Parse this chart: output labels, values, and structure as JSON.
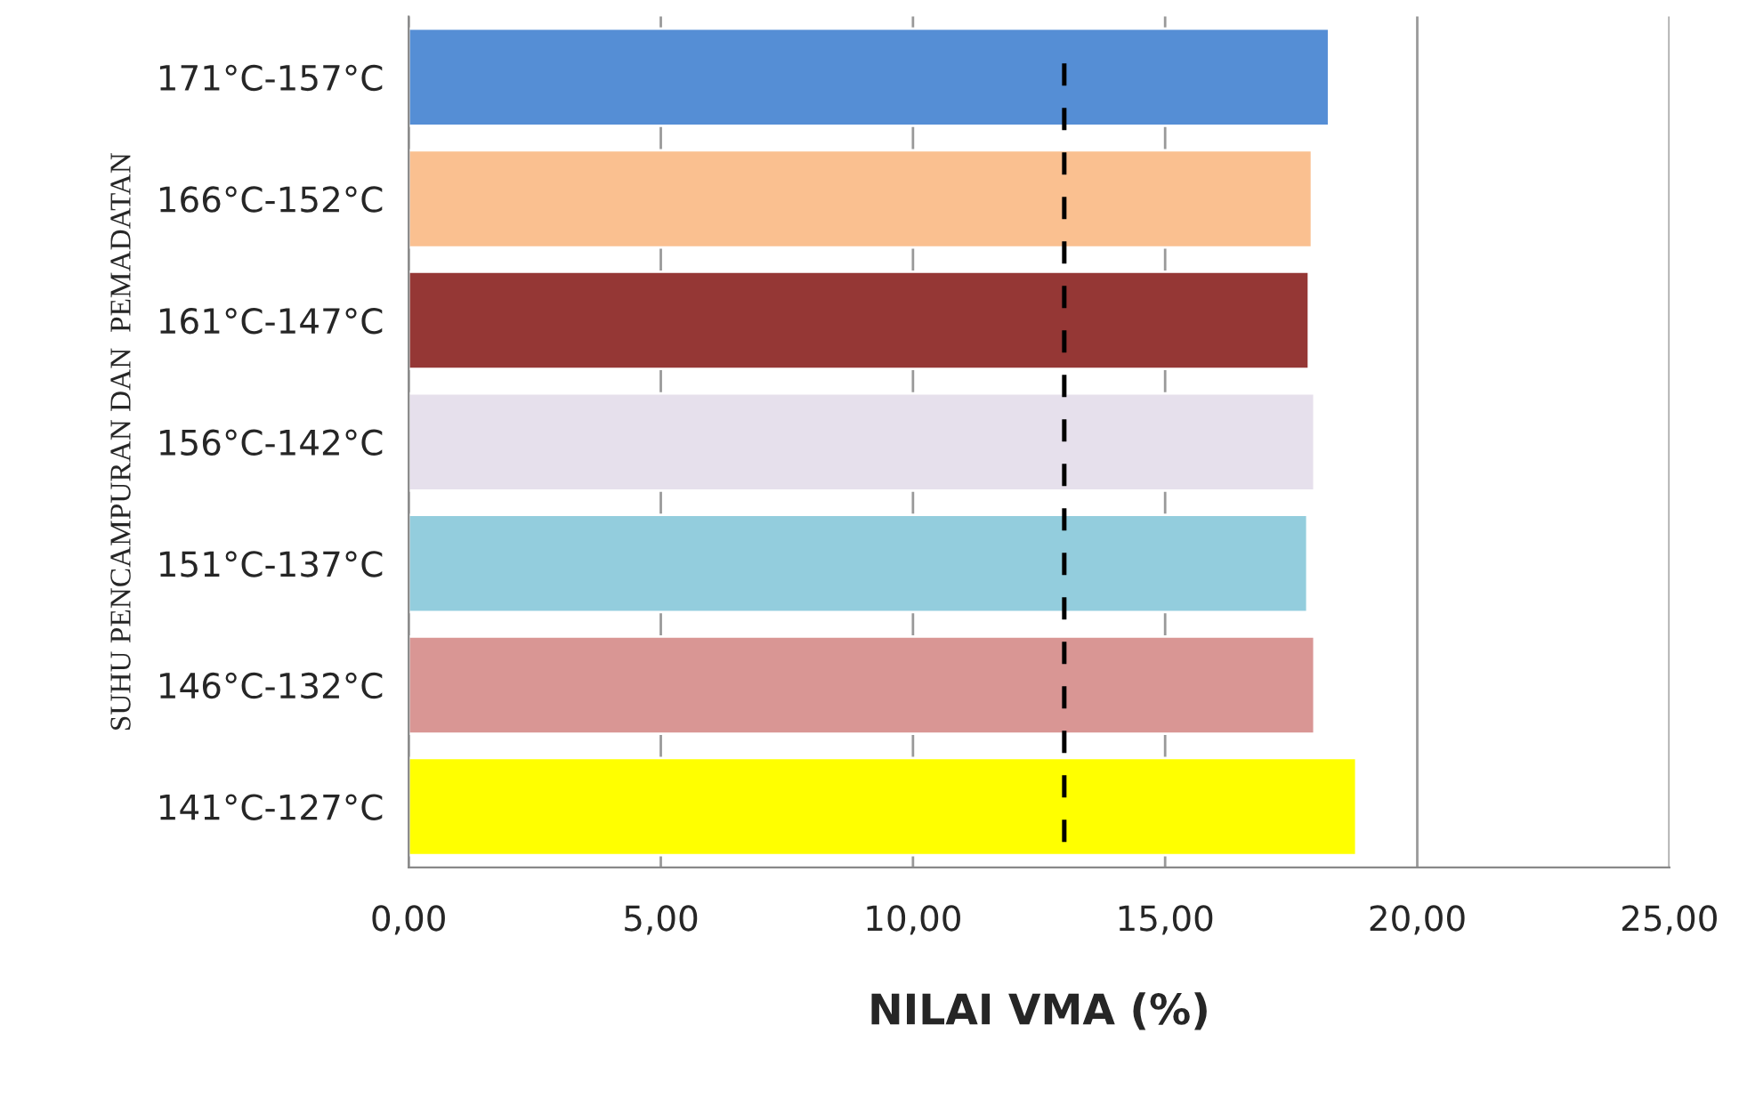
{
  "chart_data": {
    "type": "bar",
    "orientation": "horizontal",
    "xlabel": "NILAI VMA (%)",
    "ylabel": "SUHU PENCAMPURAN DAN  PEMADATAN",
    "categories": [
      "171°C-157°C",
      "166°C-152°C",
      "161°C-147°C",
      "156°C-142°C",
      "151°C-137°C",
      "146°C-132°C",
      "141°C-127°C"
    ],
    "values": [
      18.25,
      17.91,
      17.85,
      17.96,
      17.82,
      17.96,
      18.79
    ],
    "colors": [
      "#558ed5",
      "#fac090",
      "#953735",
      "#e6e0ec",
      "#93cddd",
      "#d99694",
      "#ffff00"
    ],
    "xlim": [
      0,
      25
    ],
    "xticks": [
      {
        "value": 0,
        "label": "0,00"
      },
      {
        "value": 5,
        "label": "5,00"
      },
      {
        "value": 10,
        "label": "10,00"
      },
      {
        "value": 15,
        "label": "15,00"
      },
      {
        "value": 20,
        "label": "20,00"
      },
      {
        "value": 25,
        "label": "25,00"
      }
    ],
    "grid": "x",
    "ref_lines": [
      {
        "axis": "x",
        "value": 13,
        "color": "#000000",
        "line_style": "dashed"
      }
    ]
  }
}
